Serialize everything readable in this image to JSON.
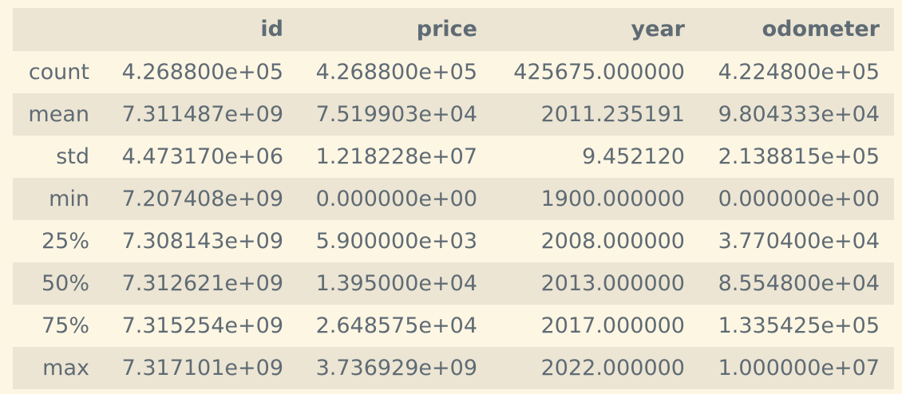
{
  "table": {
    "index_header": "",
    "columns": [
      "id",
      "price",
      "year",
      "odometer"
    ],
    "rows": [
      {
        "label": "count",
        "values": [
          "4.268800e+05",
          "4.268800e+05",
          "425675.000000",
          "4.224800e+05"
        ]
      },
      {
        "label": "mean",
        "values": [
          "7.311487e+09",
          "7.519903e+04",
          "2011.235191",
          "9.804333e+04"
        ]
      },
      {
        "label": "std",
        "values": [
          "4.473170e+06",
          "1.218228e+07",
          "9.452120",
          "2.138815e+05"
        ]
      },
      {
        "label": "min",
        "values": [
          "7.207408e+09",
          "0.000000e+00",
          "1900.000000",
          "0.000000e+00"
        ]
      },
      {
        "label": "25%",
        "values": [
          "7.308143e+09",
          "5.900000e+03",
          "2008.000000",
          "3.770400e+04"
        ]
      },
      {
        "label": "50%",
        "values": [
          "7.312621e+09",
          "1.395000e+04",
          "2013.000000",
          "8.554800e+04"
        ]
      },
      {
        "label": "75%",
        "values": [
          "7.315254e+09",
          "2.648575e+04",
          "2017.000000",
          "1.335425e+05"
        ]
      },
      {
        "label": "max",
        "values": [
          "7.317101e+09",
          "3.736929e+09",
          "2022.000000",
          "1.000000e+07"
        ]
      }
    ]
  },
  "colors": {
    "background": "#fdf6e3",
    "stripe": "#ece5d3",
    "text": "#5f6b74"
  }
}
